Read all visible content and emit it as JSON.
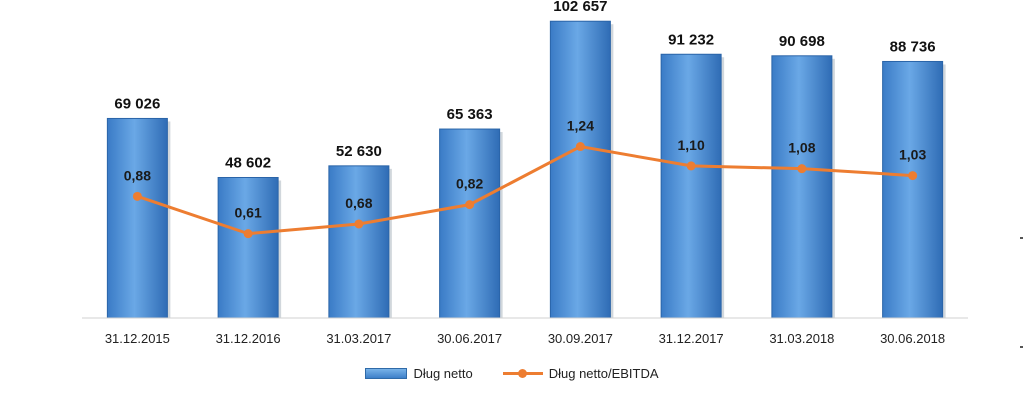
{
  "chart_data": {
    "type": "bar",
    "categories": [
      "31.12.2015",
      "31.12.2016",
      "31.03.2017",
      "30.06.2017",
      "30.09.2017",
      "31.12.2017",
      "31.03.2018",
      "30.06.2018"
    ],
    "series": [
      {
        "name": "Dług netto",
        "type": "bar",
        "values": [
          69026,
          48602,
          52630,
          65363,
          102657,
          91232,
          90698,
          88736
        ],
        "labels": [
          "69 026",
          "48 602",
          "52 630",
          "65 363",
          "102 657",
          "91 232",
          "90 698",
          "88 736"
        ],
        "color": "#4a90d9"
      },
      {
        "name": "Dług netto/EBITDA",
        "type": "line",
        "values": [
          0.88,
          0.61,
          0.68,
          0.82,
          1.24,
          1.1,
          1.08,
          1.03
        ],
        "labels": [
          "0,88",
          "0,61",
          "0,68",
          "0,82",
          "1,24",
          "1,10",
          "1,08",
          "1,03"
        ],
        "color": "#ed7d31"
      }
    ],
    "ylim_bar": [
      0,
      110000
    ],
    "ylim_line": [
      0,
      2.3
    ],
    "grid": false,
    "legend": "bottom"
  }
}
